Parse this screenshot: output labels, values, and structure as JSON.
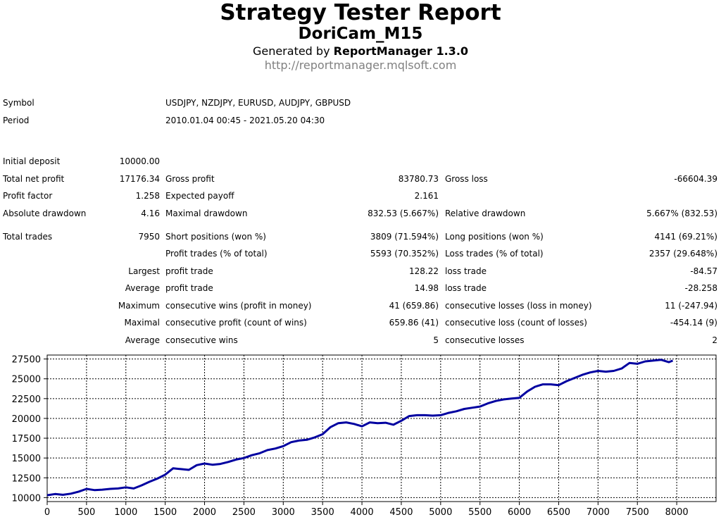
{
  "header": {
    "title": "Strategy Tester Report",
    "ea_name": "DoriCam_M15",
    "generated_prefix": "Generated by",
    "generator": "ReportManager 1.3.0",
    "url": "http://reportmanager.mqlsoft.com"
  },
  "info": {
    "symbol_label": "Symbol",
    "symbol_value": "USDJPY, NZDJPY, EURUSD, AUDJPY, GBPUSD",
    "period_label": "Period",
    "period_value": "2010.01.04 00:45 - 2021.05.20 04:30"
  },
  "stats": {
    "initial_deposit_label": "Initial deposit",
    "initial_deposit": "10000.00",
    "total_net_profit_label": "Total net profit",
    "total_net_profit": "17176.34",
    "gross_profit_label": "Gross profit",
    "gross_profit": "83780.73",
    "gross_loss_label": "Gross loss",
    "gross_loss": "-66604.39",
    "profit_factor_label": "Profit factor",
    "profit_factor": "1.258",
    "expected_payoff_label": "Expected payoff",
    "expected_payoff": "2.161",
    "absolute_drawdown_label": "Absolute drawdown",
    "absolute_drawdown": "4.16",
    "maximal_drawdown_label": "Maximal drawdown",
    "maximal_drawdown": "832.53 (5.667%)",
    "relative_drawdown_label": "Relative drawdown",
    "relative_drawdown": "5.667% (832.53)",
    "total_trades_label": "Total trades",
    "total_trades": "7950",
    "short_positions_label": "Short positions (won %)",
    "short_positions": "3809 (71.594%)",
    "long_positions_label": "Long positions (won %)",
    "long_positions": "4141 (69.21%)",
    "profit_trades_label": "Profit trades (% of total)",
    "profit_trades": "5593 (70.352%)",
    "loss_trades_label": "Loss trades (% of total)",
    "loss_trades": "2357 (29.648%)",
    "largest_label": "Largest",
    "largest_profit_trade_label": "profit trade",
    "largest_profit_trade": "128.22",
    "largest_loss_trade_label": "loss trade",
    "largest_loss_trade": "-84.57",
    "average_label": "Average",
    "average_profit_trade_label": "profit trade",
    "average_profit_trade": "14.98",
    "average_loss_trade_label": "loss trade",
    "average_loss_trade": "-28.258",
    "maximum_label": "Maximum",
    "max_consec_wins_label": "consecutive wins (profit in money)",
    "max_consec_wins": "41 (659.86)",
    "max_consec_losses_label": "consecutive losses (loss in money)",
    "max_consec_losses": "11 (-247.94)",
    "maximal_label": "Maximal",
    "maximal_consec_profit_label": "consecutive profit (count of wins)",
    "maximal_consec_profit": "659.86 (41)",
    "maximal_consec_loss_label": "consecutive loss (count of losses)",
    "maximal_consec_loss": "-454.14 (9)",
    "average2_label": "Average",
    "avg_consec_wins_label": "consecutive wins",
    "avg_consec_wins": "5",
    "avg_consec_losses_label": "consecutive losses",
    "avg_consec_losses": "2"
  },
  "chart_data": {
    "type": "line",
    "title": "",
    "xlabel": "",
    "ylabel": "",
    "xlim": [
      0,
      8500
    ],
    "ylim": [
      9500,
      28000
    ],
    "x_ticks": [
      0,
      500,
      1000,
      1500,
      2000,
      2500,
      3000,
      3500,
      4000,
      4500,
      5000,
      5500,
      6000,
      6500,
      7000,
      7500,
      8000
    ],
    "y_ticks": [
      10000,
      12500,
      15000,
      17500,
      20000,
      22500,
      25000,
      27500
    ],
    "grid": true,
    "line_color": "#0000a0",
    "series": [
      {
        "x": [
          0,
          100,
          200,
          300,
          400,
          500,
          600,
          700,
          800,
          900,
          1000,
          1100,
          1200,
          1300,
          1400,
          1500,
          1600,
          1700,
          1800,
          1900,
          2000,
          2100,
          2200,
          2300,
          2400,
          2500,
          2600,
          2700,
          2800,
          2900,
          3000,
          3100,
          3200,
          3300,
          3400,
          3500,
          3600,
          3700,
          3800,
          3900,
          4000,
          4100,
          4200,
          4300,
          4400,
          4500,
          4600,
          4700,
          4800,
          4900,
          5000,
          5100,
          5200,
          5300,
          5400,
          5500,
          5600,
          5700,
          5800,
          5900,
          6000,
          6100,
          6200,
          6300,
          6400,
          6500,
          6600,
          6700,
          6800,
          6900,
          7000,
          7100,
          7200,
          7300,
          7400,
          7500,
          7600,
          7700,
          7800,
          7900,
          7950
        ],
        "y": [
          10300,
          10450,
          10350,
          10500,
          10750,
          11100,
          10950,
          11000,
          11100,
          11150,
          11300,
          11150,
          11550,
          12000,
          12400,
          12900,
          13700,
          13600,
          13500,
          14100,
          14300,
          14150,
          14250,
          14500,
          14800,
          15000,
          15350,
          15600,
          16000,
          16200,
          16500,
          17000,
          17200,
          17300,
          17600,
          18000,
          18900,
          19400,
          19500,
          19300,
          19000,
          19500,
          19400,
          19450,
          19200,
          19700,
          20300,
          20400,
          20400,
          20350,
          20400,
          20700,
          20900,
          21200,
          21350,
          21500,
          21900,
          22200,
          22400,
          22500,
          22600,
          23400,
          24000,
          24300,
          24300,
          24200,
          24700,
          25100,
          25500,
          25800,
          26000,
          25900,
          26000,
          26300,
          27000,
          26900,
          27200,
          27300,
          27400,
          27100,
          27300
        ]
      }
    ]
  }
}
